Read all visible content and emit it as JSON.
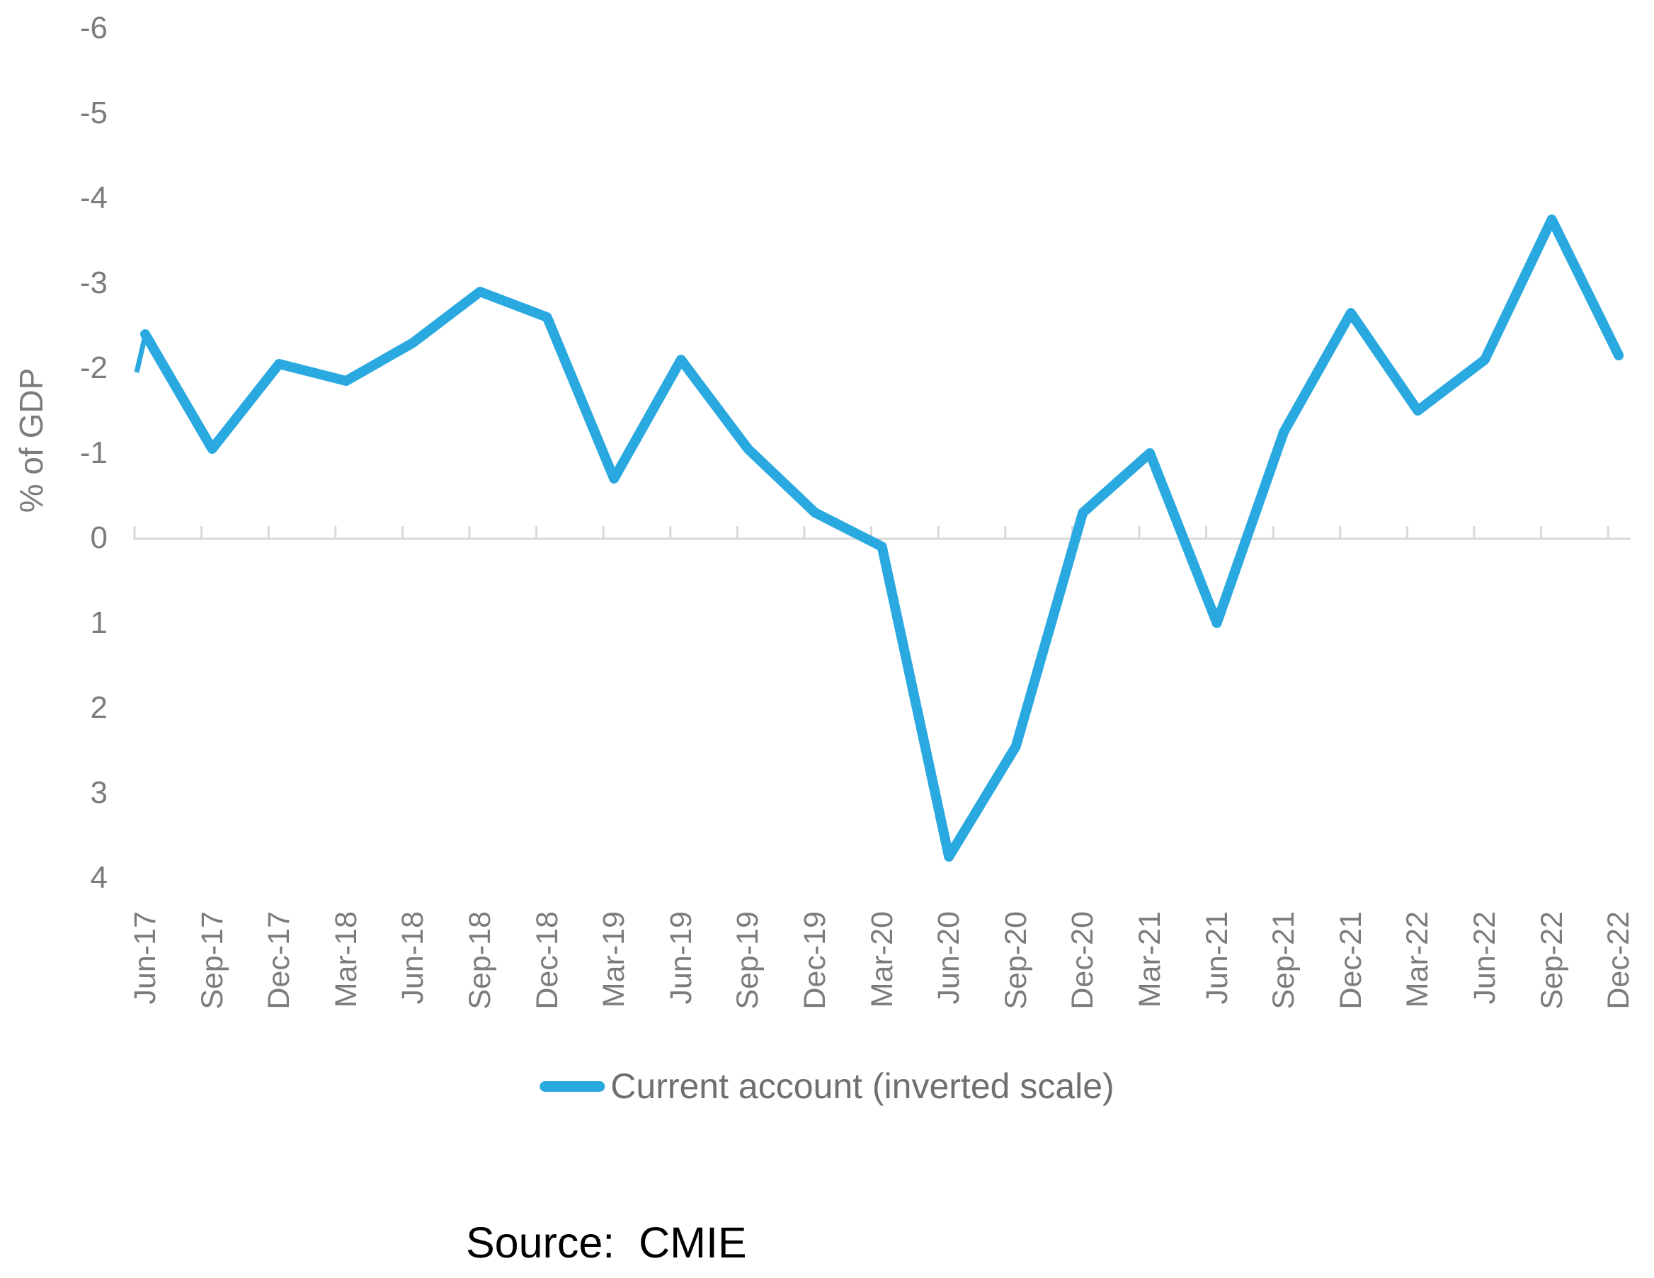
{
  "chart_data": {
    "type": "line",
    "title": "",
    "xlabel": "",
    "ylabel": "% of GDP",
    "y_axis_inverted": true,
    "ylim": [
      -6,
      4
    ],
    "y_ticks": [
      "-6",
      "-5",
      "-4",
      "-3",
      "-2",
      "-1",
      "0",
      "1",
      "2",
      "3",
      "4"
    ],
    "grid": "zero-axis-line-only",
    "legend_position": "bottom",
    "categories": [
      "Jun-17",
      "Sep-17",
      "Dec-17",
      "Mar-18",
      "Jun-18",
      "Sep-18",
      "Dec-18",
      "Mar-19",
      "Jun-19",
      "Sep-19",
      "Dec-19",
      "Mar-20",
      "Jun-20",
      "Sep-20",
      "Dec-20",
      "Mar-21",
      "Jun-21",
      "Sep-21",
      "Dec-21",
      "Mar-22",
      "Jun-22",
      "Sep-22",
      "Dec-22"
    ],
    "series": [
      {
        "name": "Current account (inverted scale)",
        "values": [
          -2.4,
          -1.05,
          -2.05,
          -1.85,
          -2.3,
          -2.9,
          -2.6,
          -0.7,
          -2.1,
          -1.05,
          -0.3,
          0.1,
          3.75,
          2.45,
          -0.3,
          -1.0,
          1.0,
          -1.25,
          -2.65,
          -1.5,
          -2.1,
          -3.75,
          -2.15
        ]
      }
    ],
    "lead_in_edge_value": -1.95,
    "line_color": "#2AA9E0",
    "axis_text_color": "#7C7C7C",
    "gridline_color": "#D9D9D9",
    "legend_text_color": "#6F6F6F"
  },
  "source_note": "Source:  CMIE"
}
